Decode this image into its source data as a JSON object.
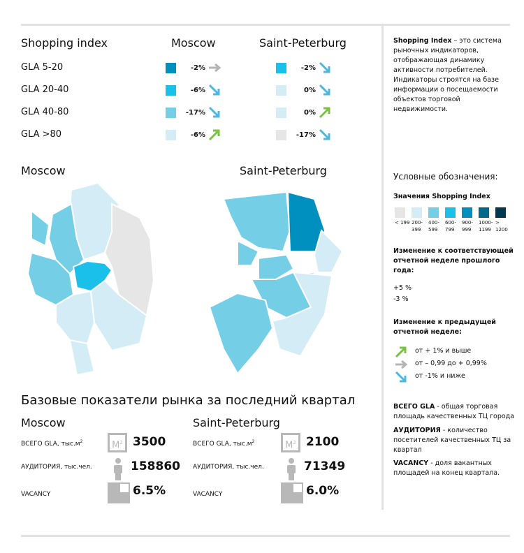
{
  "index_table": {
    "title": "Shopping index",
    "cities": [
      "Moscow",
      "Saint-Peterburg"
    ],
    "rows": [
      {
        "label": "GLA 5-20",
        "moscow": {
          "value": "-2%",
          "color": "#0090c0",
          "trend": "flat"
        },
        "spb": {
          "value": "-2%",
          "color": "#1ac0ea",
          "trend": "down"
        }
      },
      {
        "label": "GLA 20-40",
        "moscow": {
          "value": "-6%",
          "color": "#1ac0ea",
          "trend": "down"
        },
        "spb": {
          "value": "0%",
          "color": "#d3ecf6",
          "trend": "down"
        }
      },
      {
        "label": "GLA 40-80",
        "moscow": {
          "value": "-17%",
          "color": "#74cfe6",
          "trend": "down"
        },
        "spb": {
          "value": "0%",
          "color": "#d3ecf6",
          "trend": "up"
        }
      },
      {
        "label": "GLA >80",
        "moscow": {
          "value": "-6%",
          "color": "#d3ecf6",
          "trend": "up"
        },
        "spb": {
          "value": "-17%",
          "color": "#e6e6e6",
          "trend": "down"
        }
      }
    ]
  },
  "maps": {
    "moscow_title": "Moscow",
    "spb_title": "Saint-Peterburg"
  },
  "market": {
    "title": "Базовые показатели рынка за последний квартал",
    "moscow": {
      "title": "Moscow",
      "gla_label": "ВСЕГО GLA, тыс.м",
      "gla": "3500",
      "audience_label": "АУДИТОРИЯ, тыс.чел.",
      "audience": "158860",
      "vacancy_label": "VACANCY",
      "vacancy": "6.5%"
    },
    "spb": {
      "title": "Saint-Peterburg",
      "gla_label": "ВСЕГО GLA, тыс.м",
      "gla": "2100",
      "audience_label": "АУДИТОРИЯ, тыс.чел.",
      "audience": "71349",
      "vacancy_label": "VACANCY",
      "vacancy": "6.0%"
    },
    "sup": "2",
    "m2": "M"
  },
  "sidebar": {
    "intro_bold": "Shopping Index",
    "intro_text": " – это система рыночных индикаторов, отображающая динамику активности потребителей. Индикаторы строятся на базе информации о посещаемости объектов торговой недвижимости.",
    "legend_title": "Условные обозначения:",
    "values_title": "Значения Shopping Index",
    "scale": [
      {
        "label": "< 199",
        "color": "#e6e6e6"
      },
      {
        "label": "200-399",
        "color": "#d3ecf6"
      },
      {
        "label": "400-599",
        "color": "#74cfe6"
      },
      {
        "label": "600-799",
        "color": "#1ac0ea"
      },
      {
        "label": "900-999",
        "color": "#0090c0"
      },
      {
        "label": "1000-1199",
        "color": "#006a8a"
      },
      {
        "label": "> 1200",
        "color": "#003a50"
      }
    ],
    "yoy_title": "Изменение к соответствующей отчетной неделе прошлого года:",
    "yoy_up": "+5 %",
    "yoy_down": "-3 %",
    "prev_title": "Изменение к предыдущей отчетной неделе:",
    "prev_up": "от + 1% и выше",
    "prev_flat": "от – 0,99 до + 0,99%",
    "prev_down": "от -1% и ниже",
    "def_gla_b": "ВСЕГО GLA",
    "def_gla": " - общая торговая площадь качественных ТЦ города",
    "def_aud_b": "АУДИТОРИЯ",
    "def_aud": " - количество посетителей качественных ТЦ за квартал",
    "def_vac_b": "VACANCY",
    "def_vac": " - доля вакантных площадей на конец квартала."
  },
  "colors": {
    "up": "#7cc242",
    "flat": "#b4b4b4",
    "down": "#4cb8e0",
    "icon": "#b8b8b8"
  }
}
